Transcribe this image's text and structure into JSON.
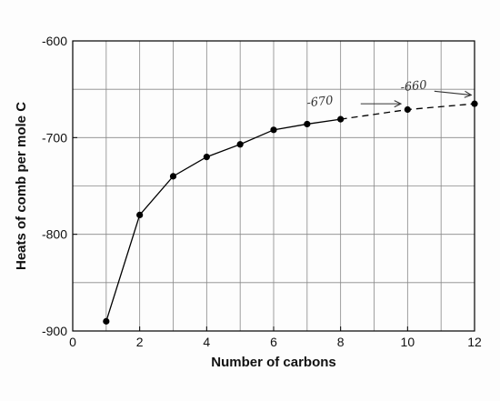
{
  "chart_data": {
    "type": "line",
    "title": "",
    "xlabel": "Number of carbons",
    "ylabel": "Heats of comb per mole C",
    "xlim": [
      0,
      12
    ],
    "ylim": [
      -900,
      -600
    ],
    "x_ticks": [
      0,
      2,
      4,
      6,
      8,
      10,
      12
    ],
    "y_ticks": [
      -600,
      -700,
      -800,
      -900
    ],
    "x_tick_labels": [
      "0",
      "2",
      "4",
      "6",
      "8",
      "10",
      "12"
    ],
    "y_tick_labels": [
      "-600",
      "-700",
      "-800",
      "-900"
    ],
    "grid": true,
    "legend": "none",
    "series": [
      {
        "style": "solid",
        "color": "#000000",
        "points": [
          {
            "x": 1,
            "y": -890
          },
          {
            "x": 2,
            "y": -780
          },
          {
            "x": 3,
            "y": -740
          },
          {
            "x": 4,
            "y": -720
          },
          {
            "x": 5,
            "y": -707
          },
          {
            "x": 6,
            "y": -692
          },
          {
            "x": 7,
            "y": -686
          },
          {
            "x": 8,
            "y": -681
          }
        ]
      },
      {
        "style": "dashed",
        "color": "#000000",
        "points": [
          {
            "x": 8,
            "y": -681
          },
          {
            "x": 10,
            "y": -671
          },
          {
            "x": 12,
            "y": -665
          }
        ]
      }
    ],
    "annotations": [
      {
        "text": "-670",
        "x": 7,
        "y": -668,
        "style": "handwritten"
      },
      {
        "text": "-660",
        "x": 9.8,
        "y": -652,
        "style": "handwritten"
      }
    ],
    "arrows": [
      {
        "from": [
          8.6,
          -665
        ],
        "to": [
          9.8,
          -665
        ]
      },
      {
        "from": [
          10.8,
          -652
        ],
        "to": [
          11.9,
          -656
        ]
      }
    ]
  }
}
